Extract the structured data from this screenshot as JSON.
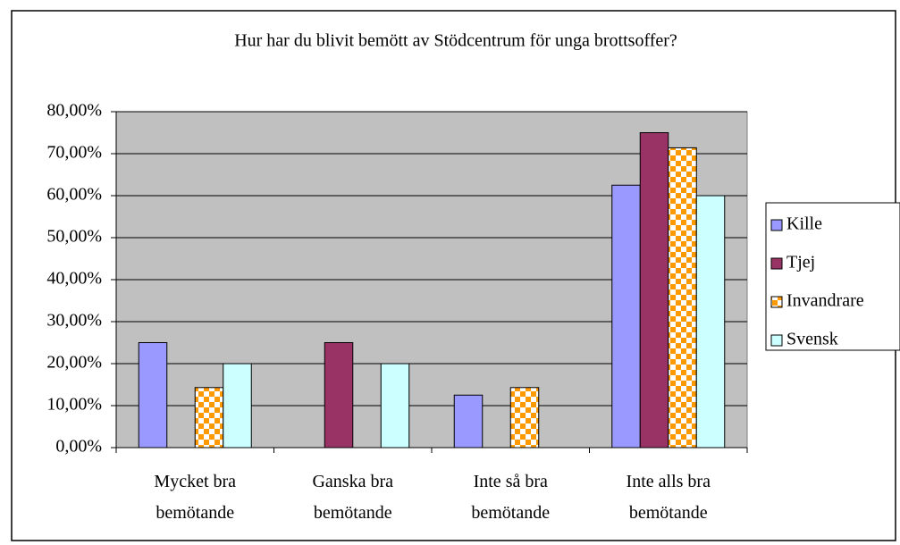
{
  "chart_data": {
    "type": "bar",
    "title": "Hur har du blivit bemött av Stödcentrum för unga brottsoffer?",
    "categories": [
      "Mycket bra bemötande",
      "Ganska bra bemötande",
      "Inte så bra bemötande",
      "Inte alls bra bemötande"
    ],
    "series": [
      {
        "name": "Kille",
        "color": "#9999ff",
        "values": [
          25,
          0,
          12.5,
          62.5
        ]
      },
      {
        "name": "Tjej",
        "color": "#993366",
        "values": [
          0,
          25,
          0,
          75
        ]
      },
      {
        "name": "Invandrare",
        "color": "#ff9900",
        "pattern": "checker",
        "values": [
          14.3,
          0,
          14.3,
          71.4
        ]
      },
      {
        "name": "Svensk",
        "color": "#ccffff",
        "values": [
          20,
          20,
          0,
          60
        ]
      }
    ],
    "ylim": [
      0,
      80
    ],
    "yticks": [
      {
        "value": 0,
        "label": "0,00%"
      },
      {
        "value": 10,
        "label": "10,00%"
      },
      {
        "value": 20,
        "label": "20,00%"
      },
      {
        "value": 30,
        "label": "30,00%"
      },
      {
        "value": 40,
        "label": "40,00%"
      },
      {
        "value": 50,
        "label": "50,00%"
      },
      {
        "value": 60,
        "label": "60,00%"
      },
      {
        "value": 70,
        "label": "70,00%"
      },
      {
        "value": 80,
        "label": "80,00%"
      }
    ],
    "grid": true,
    "legend": "right"
  }
}
